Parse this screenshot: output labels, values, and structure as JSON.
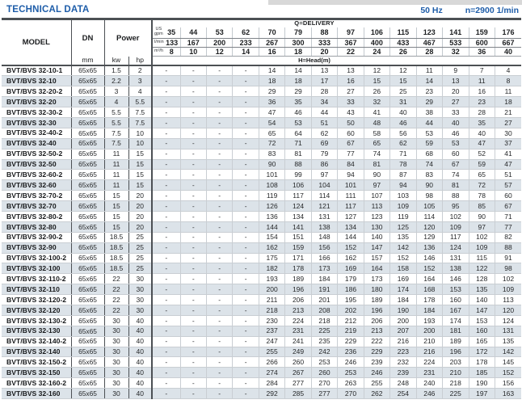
{
  "page": {
    "title": "TECHNICAL DATA",
    "frequency": "50 Hz",
    "speed": "n=2900 1/min"
  },
  "colors": {
    "accent_blue": "#1e5da9",
    "row_shade": "#dce3e9",
    "border_dark": "#4c5054",
    "border_light": "#c9ced3"
  },
  "table": {
    "col_headers": {
      "model": "MODEL",
      "dn": "DN",
      "power": "Power",
      "delivery": "Q=DELIVERY",
      "head": "H=Head(m)",
      "mm": "mm",
      "kw": "kw",
      "hp": "hp",
      "units": {
        "us": "US",
        "gpm": "gpm",
        "lmin": "l/min",
        "m3h": "m³/h"
      }
    },
    "delivery_gpm": [
      "35",
      "44",
      "53",
      "62",
      "70",
      "79",
      "88",
      "97",
      "106",
      "115",
      "123",
      "141",
      "159",
      "176"
    ],
    "delivery_lmin": [
      "133",
      "167",
      "200",
      "233",
      "267",
      "300",
      "333",
      "367",
      "400",
      "433",
      "467",
      "533",
      "600",
      "667"
    ],
    "delivery_m3h": [
      "8",
      "10",
      "12",
      "14",
      "16",
      "18",
      "20",
      "22",
      "24",
      "26",
      "28",
      "32",
      "36",
      "40"
    ],
    "rows": [
      {
        "model": "BVT/BVS 32-10-1",
        "dn": "65x65",
        "kw": "1.5",
        "hp": "2",
        "head": [
          "-",
          "-",
          "-",
          "-",
          "14",
          "14",
          "13",
          "13",
          "12",
          "12",
          "11",
          "9",
          "7",
          "4"
        ]
      },
      {
        "model": "BVT/BVS 32-10",
        "dn": "65x65",
        "kw": "2.2",
        "hp": "3",
        "head": [
          "-",
          "-",
          "-",
          "-",
          "18",
          "18",
          "17",
          "16",
          "15",
          "15",
          "14",
          "13",
          "11",
          "8"
        ]
      },
      {
        "model": "BVT/BVS 32-20-2",
        "dn": "65x65",
        "kw": "3",
        "hp": "4",
        "head": [
          "-",
          "-",
          "-",
          "-",
          "29",
          "29",
          "28",
          "27",
          "26",
          "25",
          "23",
          "20",
          "16",
          "11"
        ]
      },
      {
        "model": "BVT/BVS 32-20",
        "dn": "65x65",
        "kw": "4",
        "hp": "5.5",
        "head": [
          "-",
          "-",
          "-",
          "-",
          "36",
          "35",
          "34",
          "33",
          "32",
          "31",
          "29",
          "27",
          "23",
          "18"
        ]
      },
      {
        "model": "BVT/BVS 32-30-2",
        "dn": "65x65",
        "kw": "5.5",
        "hp": "7.5",
        "head": [
          "-",
          "-",
          "-",
          "-",
          "47",
          "46",
          "44",
          "43",
          "41",
          "40",
          "38",
          "33",
          "28",
          "21"
        ]
      },
      {
        "model": "BVT/BVS 32-30",
        "dn": "65x65",
        "kw": "5.5",
        "hp": "7.5",
        "head": [
          "-",
          "-",
          "-",
          "-",
          "54",
          "53",
          "51",
          "50",
          "48",
          "46",
          "44",
          "40",
          "35",
          "27"
        ]
      },
      {
        "model": "BVT/BVS 32-40-2",
        "dn": "65x65",
        "kw": "7.5",
        "hp": "10",
        "head": [
          "-",
          "-",
          "-",
          "-",
          "65",
          "64",
          "62",
          "60",
          "58",
          "56",
          "53",
          "46",
          "40",
          "30"
        ]
      },
      {
        "model": "BVT/BVS 32-40",
        "dn": "65x65",
        "kw": "7.5",
        "hp": "10",
        "head": [
          "-",
          "-",
          "-",
          "-",
          "72",
          "71",
          "69",
          "67",
          "65",
          "62",
          "59",
          "53",
          "47",
          "37"
        ]
      },
      {
        "model": "BVT/BVS 32-50-2",
        "dn": "65x65",
        "kw": "11",
        "hp": "15",
        "head": [
          "-",
          "-",
          "-",
          "-",
          "83",
          "81",
          "79",
          "77",
          "74",
          "71",
          "68",
          "60",
          "52",
          "41"
        ]
      },
      {
        "model": "BVT/BVS 32-50",
        "dn": "65x65",
        "kw": "11",
        "hp": "15",
        "head": [
          "-",
          "-",
          "-",
          "-",
          "90",
          "88",
          "86",
          "84",
          "81",
          "78",
          "74",
          "67",
          "59",
          "47"
        ]
      },
      {
        "model": "BVT/BVS 32-60-2",
        "dn": "65x65",
        "kw": "11",
        "hp": "15",
        "head": [
          "-",
          "-",
          "-",
          "-",
          "101",
          "99",
          "97",
          "94",
          "90",
          "87",
          "83",
          "74",
          "65",
          "51"
        ]
      },
      {
        "model": "BVT/BVS 32-60",
        "dn": "65x65",
        "kw": "11",
        "hp": "15",
        "head": [
          "-",
          "-",
          "-",
          "-",
          "108",
          "106",
          "104",
          "101",
          "97",
          "94",
          "90",
          "81",
          "72",
          "57"
        ]
      },
      {
        "model": "BVT/BVS 32-70-2",
        "dn": "65x65",
        "kw": "15",
        "hp": "20",
        "head": [
          "-",
          "-",
          "-",
          "-",
          "119",
          "117",
          "114",
          "111",
          "107",
          "103",
          "98",
          "88",
          "78",
          "60"
        ]
      },
      {
        "model": "BVT/BVS 32-70",
        "dn": "65x65",
        "kw": "15",
        "hp": "20",
        "head": [
          "-",
          "-",
          "-",
          "-",
          "126",
          "124",
          "121",
          "117",
          "113",
          "109",
          "105",
          "95",
          "85",
          "67"
        ]
      },
      {
        "model": "BVT/BVS 32-80-2",
        "dn": "65x65",
        "kw": "15",
        "hp": "20",
        "head": [
          "-",
          "-",
          "-",
          "-",
          "136",
          "134",
          "131",
          "127",
          "123",
          "119",
          "114",
          "102",
          "90",
          "71"
        ]
      },
      {
        "model": "BVT/BVS 32-80",
        "dn": "65x65",
        "kw": "15",
        "hp": "20",
        "head": [
          "-",
          "-",
          "-",
          "-",
          "144",
          "141",
          "138",
          "134",
          "130",
          "125",
          "120",
          "109",
          "97",
          "77"
        ]
      },
      {
        "model": "BVT/BVS 32-90-2",
        "dn": "65x65",
        "kw": "18.5",
        "hp": "25",
        "head": [
          "-",
          "-",
          "-",
          "-",
          "154",
          "151",
          "148",
          "144",
          "140",
          "135",
          "129",
          "117",
          "102",
          "82"
        ]
      },
      {
        "model": "BVT/BVS 32-90",
        "dn": "65x65",
        "kw": "18.5",
        "hp": "25",
        "head": [
          "-",
          "-",
          "-",
          "-",
          "162",
          "159",
          "156",
          "152",
          "147",
          "142",
          "136",
          "124",
          "109",
          "88"
        ]
      },
      {
        "model": "BVT/BVS 32-100-2",
        "dn": "65x65",
        "kw": "18.5",
        "hp": "25",
        "head": [
          "-",
          "-",
          "-",
          "-",
          "175",
          "171",
          "166",
          "162",
          "157",
          "152",
          "146",
          "131",
          "115",
          "91"
        ]
      },
      {
        "model": "BVT/BVS 32-100",
        "dn": "65x65",
        "kw": "18.5",
        "hp": "25",
        "head": [
          "-",
          "-",
          "-",
          "-",
          "182",
          "178",
          "173",
          "169",
          "164",
          "158",
          "152",
          "138",
          "122",
          "98"
        ]
      },
      {
        "model": "BVT/BVS 32-110-2",
        "dn": "65x65",
        "kw": "22",
        "hp": "30",
        "head": [
          "-",
          "-",
          "-",
          "-",
          "193",
          "189",
          "184",
          "179",
          "173",
          "169",
          "164",
          "146",
          "128",
          "102"
        ]
      },
      {
        "model": "BVT/BVS 32-110",
        "dn": "65x65",
        "kw": "22",
        "hp": "30",
        "head": [
          "-",
          "-",
          "-",
          "-",
          "200",
          "196",
          "191",
          "186",
          "180",
          "174",
          "168",
          "153",
          "135",
          "109"
        ]
      },
      {
        "model": "BVT/BVS 32-120-2",
        "dn": "65x65",
        "kw": "22",
        "hp": "30",
        "head": [
          "-",
          "-",
          "-",
          "-",
          "211",
          "206",
          "201",
          "195",
          "189",
          "184",
          "178",
          "160",
          "140",
          "113"
        ]
      },
      {
        "model": "BVT/BVS 32-120",
        "dn": "65x65",
        "kw": "22",
        "hp": "30",
        "head": [
          "-",
          "-",
          "-",
          "-",
          "218",
          "213",
          "208",
          "202",
          "196",
          "190",
          "184",
          "167",
          "147",
          "120"
        ]
      },
      {
        "model": "BVT/BVS 32-130-2",
        "dn": "65x65",
        "kw": "30",
        "hp": "40",
        "head": [
          "-",
          "-",
          "-",
          "-",
          "230",
          "224",
          "218",
          "212",
          "206",
          "200",
          "193",
          "174",
          "153",
          "124"
        ]
      },
      {
        "model": "BVT/BVS 32-130",
        "dn": "65x65",
        "kw": "30",
        "hp": "40",
        "head": [
          "-",
          "-",
          "-",
          "-",
          "237",
          "231",
          "225",
          "219",
          "213",
          "207",
          "200",
          "181",
          "160",
          "131"
        ]
      },
      {
        "model": "BVT/BVS 32-140-2",
        "dn": "65x65",
        "kw": "30",
        "hp": "40",
        "head": [
          "-",
          "-",
          "-",
          "-",
          "247",
          "241",
          "235",
          "229",
          "222",
          "216",
          "210",
          "189",
          "165",
          "135"
        ]
      },
      {
        "model": "BVT/BVS 32-140",
        "dn": "65x65",
        "kw": "30",
        "hp": "40",
        "head": [
          "-",
          "-",
          "-",
          "-",
          "255",
          "249",
          "242",
          "236",
          "229",
          "223",
          "216",
          "196",
          "172",
          "142"
        ]
      },
      {
        "model": "BVT/BVS 32-150-2",
        "dn": "65x65",
        "kw": "30",
        "hp": "40",
        "head": [
          "-",
          "-",
          "-",
          "-",
          "266",
          "260",
          "253",
          "246",
          "239",
          "232",
          "224",
          "203",
          "178",
          "145"
        ]
      },
      {
        "model": "BVT/BVS 32-150",
        "dn": "65x65",
        "kw": "30",
        "hp": "40",
        "head": [
          "-",
          "-",
          "-",
          "-",
          "274",
          "267",
          "260",
          "253",
          "246",
          "239",
          "231",
          "210",
          "185",
          "152"
        ]
      },
      {
        "model": "BVT/BVS 32-160-2",
        "dn": "65x65",
        "kw": "30",
        "hp": "40",
        "head": [
          "-",
          "-",
          "-",
          "-",
          "284",
          "277",
          "270",
          "263",
          "255",
          "248",
          "240",
          "218",
          "190",
          "156"
        ]
      },
      {
        "model": "BVT/BVS 32-160",
        "dn": "65x65",
        "kw": "30",
        "hp": "40",
        "head": [
          "-",
          "-",
          "-",
          "-",
          "292",
          "285",
          "277",
          "270",
          "262",
          "254",
          "246",
          "225",
          "197",
          "163"
        ]
      }
    ]
  }
}
